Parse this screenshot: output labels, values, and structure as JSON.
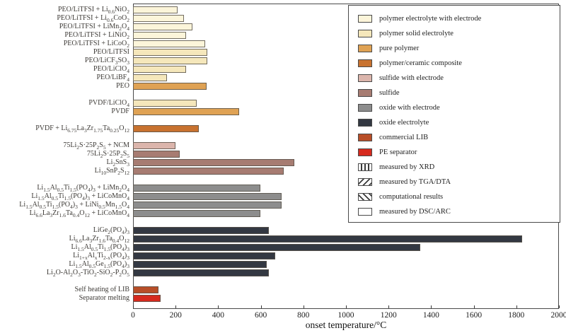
{
  "chart_data": {
    "type": "bar",
    "orientation": "horizontal",
    "title": "",
    "xlabel": "onset temperature/°C",
    "ylabel": "",
    "xlim": [
      0,
      2000
    ],
    "x_ticks": [
      0,
      200,
      400,
      600,
      800,
      1000,
      1200,
      1400,
      1600,
      1800,
      2000
    ],
    "grid": false,
    "palette": {
      "polymer_electrolyte_with_electrode": "#FCF5DA",
      "polymer_solid_electrolyte": "#F5E7BB",
      "pure_polymer": "#DFA254",
      "polymer_ceramic_composite": "#C8722F",
      "sulfide_with_electrode": "#DBB5AC",
      "sulfide": "#A77C72",
      "oxide_with_electrode": "#8D8D8D",
      "oxide_electrolyte": "#333842",
      "commercial_lib": "#B84E28",
      "pe_separator": "#D62A1E"
    },
    "groups": [
      {
        "rows": [
          {
            "label": "PEO/LiTFSI + Li_{0.6}NiO_{2}",
            "value": 210,
            "category": "polymer_electrolyte_with_electrode",
            "method": "dsc_arc"
          },
          {
            "label": "PEO/LiTFSI + Li_{0.6}CoO_{2}",
            "value": 240,
            "category": "polymer_electrolyte_with_electrode",
            "method": "dsc_arc"
          },
          {
            "label": "PEO/LiTFSI + LiMn_{2}O_{4}",
            "value": 280,
            "category": "polymer_electrolyte_with_electrode",
            "method": "dsc_arc"
          },
          {
            "label": "PEO/LiTFSI + LiNiO_{2}",
            "value": 250,
            "category": "polymer_electrolyte_with_electrode",
            "method": "dsc_arc"
          },
          {
            "label": "PEO/LiTFSI + LiCoO_{2}",
            "value": 340,
            "category": "polymer_electrolyte_with_electrode",
            "method": "dsc_arc"
          },
          {
            "label": "PEO/LiTFSI",
            "value": 350,
            "category": "polymer_solid_electrolyte",
            "method": "tga_dta"
          },
          {
            "label": "PEO/LiCF_{3}SO_{3}",
            "value": 350,
            "category": "polymer_solid_electrolyte",
            "method": "tga_dta"
          },
          {
            "label": "PEO/LiClO_{4}",
            "value": 250,
            "category": "polymer_solid_electrolyte",
            "method": "tga_dta"
          },
          {
            "label": "PEO/LiBF_{4}",
            "value": 160,
            "category": "polymer_solid_electrolyte",
            "method": "dsc_arc"
          },
          {
            "label": "PEO",
            "value": 345,
            "category": "pure_polymer",
            "method": "tga_dta"
          }
        ]
      },
      {
        "rows": [
          {
            "label": "PVDF/LiClO_{4}",
            "value": 300,
            "category": "polymer_solid_electrolyte",
            "method": "dsc_arc"
          },
          {
            "label": "PVDF",
            "value": 500,
            "category": "pure_polymer",
            "method": "tga_dta"
          }
        ]
      },
      {
        "rows": [
          {
            "label": "PVDF + Li_{6.75}La_{3}Zr_{1.75}Ta_{0.25}O_{12}",
            "value": 310,
            "category": "polymer_ceramic_composite",
            "method": "tga_dta"
          }
        ]
      },
      {
        "rows": [
          {
            "label": "75Li_{2}S·25P_{2}S_{5} + NCM",
            "value": 200,
            "category": "sulfide_with_electrode",
            "method": "dsc_arc"
          },
          {
            "label": "75Li_{2}S·25P_{2}S_{5}",
            "value": 220,
            "category": "sulfide",
            "method": "dsc_arc"
          },
          {
            "label": "Li_{2}SnS_{3}",
            "value": 760,
            "category": "sulfide",
            "method": "tga_dta"
          },
          {
            "label": "Li_{10}SnP_{2}S_{12}",
            "value": 710,
            "category": "sulfide",
            "method": "tga_dta"
          }
        ]
      },
      {
        "rows": [
          {
            "label": "Li_{1.5}Al_{0.5}Ti_{1.5}(PO_{4})_{3} + LiMn_{2}O_{4}",
            "value": 600,
            "category": "oxide_with_electrode",
            "method": "xrd"
          },
          {
            "label": "Li_{1.5}Al_{0.5}Ti_{1.5}(PO_{4})_{3} + LiCoMnO_{4}",
            "value": 700,
            "category": "oxide_with_electrode",
            "method": "xrd"
          },
          {
            "label": "Li_{1.5}Al_{0.5}Ti_{1.5}(PO_{4})_{3} + LiNi_{0.5}Mn_{1.5}O_{4}",
            "value": 700,
            "category": "oxide_with_electrode",
            "method": "xrd"
          },
          {
            "label": "Li_{6.6}La_{3}Zr_{1.6}Ta_{0.4}O_{12} + LiCoMnO_{4}",
            "value": 600,
            "category": "oxide_with_electrode",
            "method": "xrd"
          }
        ]
      },
      {
        "rows": [
          {
            "label": "LiGe_{2}(PO_{4})_{3}",
            "value": 640,
            "category": "oxide_electrolyte",
            "method": "dsc_arc"
          },
          {
            "label": "Li_{6.6}La_{3}Zr_{1.6}Ta_{0.4}O_{12}",
            "value": 1830,
            "category": "oxide_electrolyte",
            "method": "computational"
          },
          {
            "label": "Li_{1.5}Al_{0.5}Ti_{1.5}(PO_{4})_{3}",
            "value": 1350,
            "category": "oxide_electrolyte",
            "method": "computational"
          },
          {
            "label": "Li_{1+x}Al_{x}Ti_{2-x}(PO_{4})_{3}",
            "value": 670,
            "category": "oxide_electrolyte",
            "method": "dsc_arc"
          },
          {
            "label": "Li_{1.5}Al_{0.5}Ge_{1.5}(PO_{4})_{3}",
            "value": 630,
            "category": "oxide_electrolyte",
            "method": "dsc_arc"
          },
          {
            "label": "Li_{2}O-Al_{2}O_{3}-TiO_{2}-SiO_{2}-P_{2}O_{5}",
            "value": 640,
            "category": "oxide_electrolyte",
            "method": "dsc_arc"
          }
        ]
      },
      {
        "rows": [
          {
            "label": "Self heating of LIB",
            "value": 120,
            "category": "commercial_lib",
            "method": "dsc_arc"
          },
          {
            "label": "Separator melting",
            "value": 130,
            "category": "pe_separator",
            "method": "dsc_arc"
          }
        ]
      }
    ],
    "legend": {
      "position": "top-right",
      "fill_items": [
        {
          "label": "polymer electrolyte with electrode",
          "key": "polymer_electrolyte_with_electrode",
          "color": "#FCF5DA"
        },
        {
          "label": "polymer solid electrolyte",
          "key": "polymer_solid_electrolyte",
          "color": "#F5E7BB"
        },
        {
          "label": "pure polymer",
          "key": "pure_polymer",
          "color": "#DFA254"
        },
        {
          "label": "polymer/ceramic composite",
          "key": "polymer_ceramic_composite",
          "color": "#C8722F"
        },
        {
          "label": "sulfide with electrode",
          "key": "sulfide_with_electrode",
          "color": "#DBB5AC"
        },
        {
          "label": "sulfide",
          "key": "sulfide",
          "color": "#A77C72"
        },
        {
          "label": "oxide with electrode",
          "key": "oxide_with_electrode",
          "color": "#8D8D8D"
        },
        {
          "label": "oxide electrolyte",
          "key": "oxide_electrolyte",
          "color": "#333842"
        },
        {
          "label": "commercial LIB",
          "key": "commercial_lib",
          "color": "#B84E28"
        },
        {
          "label": "PE separator",
          "key": "pe_separator",
          "color": "#D62A1E"
        }
      ],
      "pattern_items": [
        {
          "label": "measured by XRD",
          "key": "xrd",
          "pattern": "vertical-lines"
        },
        {
          "label": "measured by TGA/DTA",
          "key": "tga_dta",
          "pattern": "diagonal-forward"
        },
        {
          "label": "computational results",
          "key": "computational",
          "pattern": "diagonal-backward"
        },
        {
          "label": "measured by DSC/ARC",
          "key": "dsc_arc",
          "pattern": "plain"
        }
      ]
    }
  }
}
